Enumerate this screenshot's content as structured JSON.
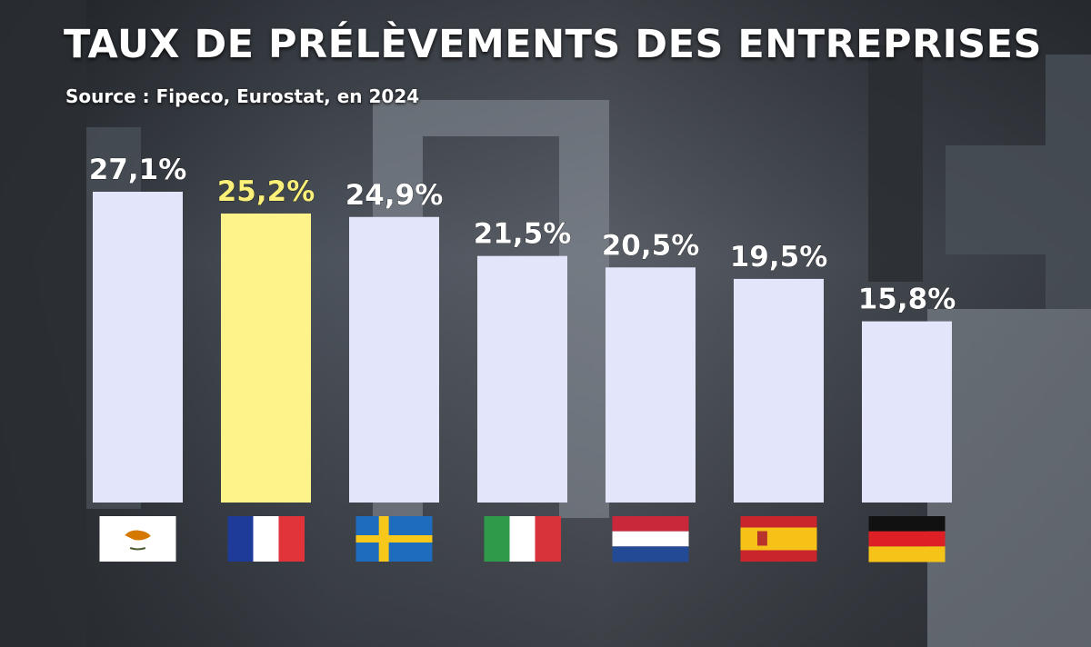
{
  "title": "TAUX DE PRÉLÈVEMENTS DES ENTREPRISES",
  "subtitle": "Source : Fipeco, Eurostat, en 2024",
  "colors": {
    "bar_default": "#e3e6fb",
    "bar_highlight": "#fcf48a",
    "label_default": "#ffffff",
    "label_highlight": "#fbf07a"
  },
  "chart_data": {
    "type": "bar",
    "title": "TAUX DE PRÉLÈVEMENTS DES ENTREPRISES",
    "subtitle": "Source : Fipeco, Eurostat, en 2024",
    "categories": [
      "cyprus-flag",
      "france-flag",
      "sweden-flag",
      "italy-flag",
      "netherlands-flag",
      "spain-flag",
      "germany-flag"
    ],
    "values": [
      27.1,
      25.2,
      24.9,
      21.5,
      20.5,
      19.5,
      15.8
    ],
    "labels": [
      "27,1%",
      "25,2%",
      "24,9%",
      "21,5%",
      "20,5%",
      "19,5%",
      "15,8%"
    ],
    "highlight_index": 1,
    "ylim": [
      0,
      27.1
    ],
    "xlabel": "",
    "ylabel": "",
    "grid": false,
    "legend": "none"
  }
}
